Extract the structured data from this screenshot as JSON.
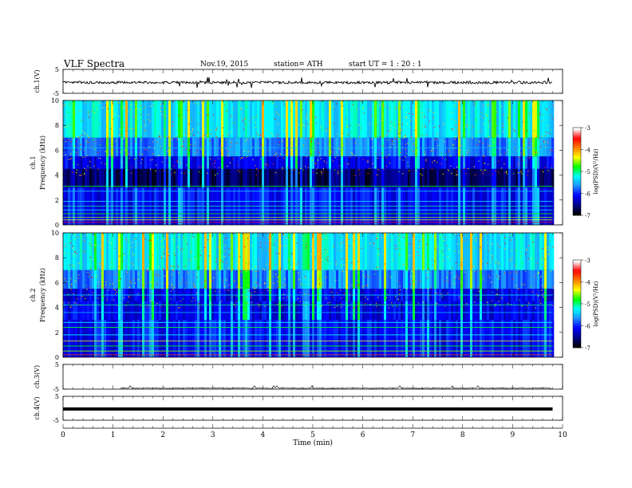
{
  "header": {
    "title": "VLF  Spectra",
    "date": "Nov.19, 2015",
    "station": "station= ATH",
    "start": "start  UT  =   1  : 20 : 1"
  },
  "chart_data": [
    {
      "type": "line",
      "panel": "ch1",
      "ylabel": "ch.1(V)",
      "ylim": [
        -5,
        5
      ],
      "yticks": [
        "5",
        "-5"
      ],
      "baseline_level": -0.5,
      "trace_color": "#000000"
    },
    {
      "type": "heatmap",
      "panel": "ch1-spectrogram",
      "ylabel_top": "ch.1",
      "ylabel": "Frequency  (kHz)",
      "ylim": [
        0,
        10
      ],
      "yticks": [
        "0",
        "2",
        "4",
        "6",
        "8",
        "10"
      ],
      "signal_end_min": 9.8,
      "color_scale": {
        "label": "log(PSD)(V²/Hz)",
        "range": [
          -7,
          -3
        ],
        "ticks": [
          "-3",
          "-4",
          "-5",
          "-6",
          "-7"
        ],
        "colors": [
          "#000000",
          "#00008b",
          "#0000ff",
          "#1e90ff",
          "#00ffff",
          "#00ff00",
          "#ffff00",
          "#ff8000",
          "#ff0000",
          "#ffffff"
        ]
      },
      "bands_khz": [
        {
          "khz": 6.2,
          "color": "#00c8ff"
        },
        {
          "khz": 3.1,
          "color": "#00ff40"
        },
        {
          "khz": 2.7,
          "color": "#00e0ff"
        },
        {
          "khz": 1.9,
          "color": "#00ffff"
        },
        {
          "khz": 1.5,
          "color": "#00ff80"
        },
        {
          "khz": 1.2,
          "color": "#00ffff"
        },
        {
          "khz": 0.9,
          "color": "#00ff00"
        },
        {
          "khz": 0.6,
          "color": "#80ff00"
        },
        {
          "khz": 0.4,
          "color": "#ffff00"
        },
        {
          "khz": 0.2,
          "color": "#ff0000"
        }
      ]
    },
    {
      "type": "heatmap",
      "panel": "ch2-spectrogram",
      "ylabel_top": "ch.2",
      "ylabel": "Frequency  (kHz)",
      "ylim": [
        0,
        10
      ],
      "yticks": [
        "0",
        "2",
        "4",
        "6",
        "8",
        "10"
      ],
      "signal_end_min": 9.8,
      "color_scale": {
        "label": "log(PSD)(V²/Hz)",
        "range": [
          -7,
          -3
        ],
        "ticks": [
          "-3",
          "-4",
          "-5",
          "-6",
          "-7"
        ],
        "colors": [
          "#000000",
          "#00008b",
          "#0000ff",
          "#1e90ff",
          "#00ffff",
          "#00ff00",
          "#ffff00",
          "#ff8000",
          "#ff0000",
          "#ffffff"
        ]
      },
      "bands_khz": [
        {
          "khz": 5.0,
          "color": "#00ffff"
        },
        {
          "khz": 4.2,
          "color": "#00ff80"
        },
        {
          "khz": 3.6,
          "color": "#00c8ff"
        },
        {
          "khz": 2.8,
          "color": "#00ffff"
        },
        {
          "khz": 2.4,
          "color": "#00ff40"
        },
        {
          "khz": 1.8,
          "color": "#00ffff"
        },
        {
          "khz": 1.3,
          "color": "#ffff00"
        },
        {
          "khz": 0.9,
          "color": "#00ff00"
        },
        {
          "khz": 0.5,
          "color": "#80ff00"
        },
        {
          "khz": 0.2,
          "color": "#ff4000"
        }
      ]
    },
    {
      "type": "line",
      "panel": "ch3",
      "ylabel": "ch.3(V)",
      "ylim": [
        -5,
        5
      ],
      "yticks": [
        "5",
        "-5"
      ],
      "baseline_level": -4.6,
      "trace_color": "#000000"
    },
    {
      "type": "line",
      "panel": "ch4",
      "ylabel": "ch.4(V)",
      "ylim": [
        -5,
        5
      ],
      "yticks": [
        "5",
        "-5"
      ],
      "baseline_level": -0.3,
      "trace_color": "#000000"
    }
  ],
  "xaxis": {
    "xlabel": "Time  (min)",
    "xlim": [
      0,
      10
    ],
    "ticks": [
      "0",
      "1",
      "2",
      "3",
      "4",
      "5",
      "6",
      "7",
      "8",
      "9",
      "10"
    ]
  }
}
